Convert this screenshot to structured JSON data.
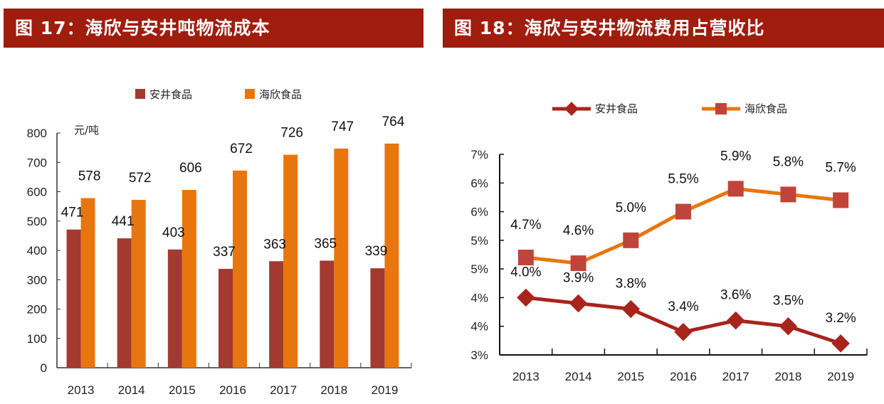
{
  "colors": {
    "header_bg": "#a01c0c",
    "anjing": "#a23a2f",
    "haixin": "#e8760e",
    "marker_haixin": "#c0443a"
  },
  "chart_data": [
    {
      "type": "bar",
      "title": "图 17：海欣与安井吨物流成本",
      "ylabel": "元/吨",
      "xlabel": "",
      "ylim": [
        0,
        800
      ],
      "yticks": [
        0,
        100,
        200,
        300,
        400,
        500,
        600,
        700,
        800
      ],
      "ytick_labels": [
        "0",
        "100",
        "200",
        "300",
        "400",
        "500",
        "600",
        "700",
        "800"
      ],
      "categories": [
        "2013",
        "2014",
        "2015",
        "2016",
        "2017",
        "2018",
        "2019"
      ],
      "legend_position": "top-center",
      "series": [
        {
          "name": "安井食品",
          "values": [
            471,
            441,
            403,
            337,
            363,
            365,
            339
          ],
          "labels": [
            "471",
            "441",
            "403",
            "337",
            "363",
            "365",
            "339"
          ]
        },
        {
          "name": "海欣食品",
          "values": [
            578,
            572,
            606,
            672,
            726,
            747,
            764
          ],
          "labels": [
            "578",
            "572",
            "606",
            "672",
            "726",
            "747",
            "764"
          ]
        }
      ]
    },
    {
      "type": "line",
      "title": "图 18：海欣与安井物流费用占营收比",
      "xlabel": "",
      "ylabel": "",
      "ylim": [
        3.0,
        6.5
      ],
      "yticks": [
        3.0,
        3.5,
        4.0,
        4.5,
        5.0,
        5.5,
        6.0,
        6.5
      ],
      "ytick_labels": [
        "3%",
        "4%",
        "4%",
        "5%",
        "5%",
        "6%",
        "6%",
        "7%"
      ],
      "categories": [
        "2013",
        "2014",
        "2015",
        "2016",
        "2017",
        "2018",
        "2019"
      ],
      "legend_position": "top-center",
      "series": [
        {
          "name": "安井食品",
          "marker": "diamond",
          "values": [
            4.0,
            3.9,
            3.8,
            3.4,
            3.6,
            3.5,
            3.2
          ],
          "labels": [
            "4.0%",
            "3.9%",
            "3.8%",
            "3.4%",
            "3.6%",
            "3.5%",
            "3.2%"
          ]
        },
        {
          "name": "海欣食品",
          "marker": "square",
          "values": [
            4.7,
            4.6,
            5.0,
            5.5,
            5.9,
            5.8,
            5.7
          ],
          "labels": [
            "4.7%",
            "4.6%",
            "5.0%",
            "5.5%",
            "5.9%",
            "5.8%",
            "5.7%"
          ]
        }
      ]
    }
  ]
}
